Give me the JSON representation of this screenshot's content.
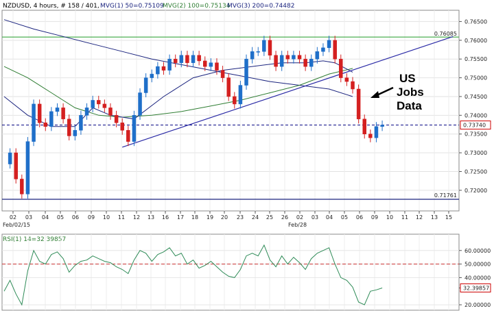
{
  "header": {
    "symbol": "NZDUSD",
    "timeframe": ", 4 hours, # 158 / 401, ",
    "mvg1": "MVG(1) 50=0.75109",
    "mvg2": "MVG(2) 100=0.75134",
    "mvg3": "MVG(3) 200=0.74482"
  },
  "annotation": {
    "line1": "US",
    "line2": "Jobs",
    "line3": "Data"
  },
  "colors": {
    "candle_up": "#1f6fc9",
    "candle_down": "#d42020",
    "mvg1": "#1a237e",
    "mvg2": "#2e7d32",
    "mvg3": "#1a237e",
    "trendline": "#2a2aa6",
    "resistance": "#4caf50",
    "support": "#1a237e",
    "current_price": "#000080",
    "rsi_line": "#2e8b57",
    "rsi_level": "#cc3333"
  },
  "chart_data": [
    {
      "type": "candlestick",
      "title": "NZDUSD, 4 hours",
      "ylim": [
        0.7145,
        0.768
      ],
      "y_ticks": [
        "0.76500",
        "0.76000",
        "0.75500",
        "0.75000",
        "0.74500",
        "0.74000",
        "0.73500",
        "0.73000",
        "0.72500",
        "0.72000"
      ],
      "x_tick_labels": [
        "02",
        "03",
        "04",
        "05",
        "06",
        "09",
        "10",
        "11",
        "12",
        "13",
        "16",
        "17",
        "18",
        "19",
        "20",
        "23",
        "24",
        "25",
        "26",
        "02",
        "03",
        "04",
        "05",
        "06",
        "09",
        "10",
        "11",
        "12",
        "13",
        "15"
      ],
      "date_labels": [
        "Feb/02/15",
        "Feb/28"
      ],
      "price_labels": {
        "resistance": "0.76085",
        "current": "0.73740",
        "support": "0.71761"
      },
      "levels": {
        "resistance": 0.76085,
        "current": 0.7374,
        "support": 0.71761
      },
      "close_path": [
        [
          0,
          0.727
        ],
        [
          1,
          0.73
        ],
        [
          2,
          0.723
        ],
        [
          3,
          0.719
        ],
        [
          4,
          0.733
        ],
        [
          5,
          0.743
        ],
        [
          6,
          0.738
        ],
        [
          7,
          0.737
        ],
        [
          8,
          0.741
        ],
        [
          9,
          0.742
        ],
        [
          10,
          0.739
        ],
        [
          11,
          0.7345
        ],
        [
          12,
          0.736
        ],
        [
          13,
          0.74
        ],
        [
          14,
          0.742
        ],
        [
          15,
          0.744
        ],
        [
          16,
          0.743
        ],
        [
          17,
          0.742
        ],
        [
          18,
          0.74
        ],
        [
          19,
          0.738
        ],
        [
          20,
          0.736
        ],
        [
          21,
          0.733
        ],
        [
          22,
          0.74
        ],
        [
          23,
          0.746
        ],
        [
          24,
          0.75
        ],
        [
          25,
          0.751
        ],
        [
          26,
          0.753
        ],
        [
          27,
          0.752
        ],
        [
          28,
          0.755
        ],
        [
          29,
          0.754
        ],
        [
          30,
          0.756
        ],
        [
          31,
          0.754
        ],
        [
          32,
          0.756
        ],
        [
          33,
          0.7545
        ],
        [
          34,
          0.753
        ],
        [
          35,
          0.754
        ],
        [
          36,
          0.752
        ],
        [
          37,
          0.75
        ],
        [
          38,
          0.745
        ],
        [
          39,
          0.743
        ],
        [
          40,
          0.748
        ],
        [
          41,
          0.755
        ],
        [
          42,
          0.757
        ],
        [
          43,
          0.757
        ],
        [
          44,
          0.76
        ],
        [
          45,
          0.756
        ],
        [
          46,
          0.753
        ],
        [
          47,
          0.756
        ],
        [
          48,
          0.755
        ],
        [
          49,
          0.756
        ],
        [
          50,
          0.755
        ],
        [
          51,
          0.753
        ],
        [
          52,
          0.755
        ],
        [
          53,
          0.757
        ],
        [
          54,
          0.758
        ],
        [
          55,
          0.76
        ],
        [
          56,
          0.755
        ],
        [
          57,
          0.75
        ],
        [
          58,
          0.749
        ],
        [
          59,
          0.747
        ],
        [
          60,
          0.739
        ],
        [
          61,
          0.735
        ],
        [
          62,
          0.734
        ],
        [
          63,
          0.737
        ],
        [
          64,
          0.7374
        ]
      ],
      "ma_50": [
        [
          0,
          0.745
        ],
        [
          4,
          0.74
        ],
        [
          8,
          0.737
        ],
        [
          12,
          0.737
        ],
        [
          15,
          0.742
        ],
        [
          18,
          0.74
        ],
        [
          22,
          0.739
        ],
        [
          27,
          0.745
        ],
        [
          32,
          0.75
        ],
        [
          37,
          0.752
        ],
        [
          42,
          0.753
        ],
        [
          47,
          0.754
        ],
        [
          51,
          0.754
        ],
        [
          54,
          0.7545
        ],
        [
          56,
          0.754
        ],
        [
          59,
          0.7515
        ]
      ],
      "ma_100": [
        [
          0,
          0.753
        ],
        [
          4,
          0.75
        ],
        [
          8,
          0.746
        ],
        [
          12,
          0.742
        ],
        [
          16,
          0.74
        ],
        [
          20,
          0.7395
        ],
        [
          25,
          0.74
        ],
        [
          30,
          0.741
        ],
        [
          35,
          0.7425
        ],
        [
          40,
          0.744
        ],
        [
          45,
          0.746
        ],
        [
          50,
          0.748
        ],
        [
          55,
          0.751
        ],
        [
          59,
          0.7525
        ]
      ],
      "ma_200": [
        [
          0,
          0.7655
        ],
        [
          5,
          0.763
        ],
        [
          10,
          0.761
        ],
        [
          15,
          0.759
        ],
        [
          20,
          0.757
        ],
        [
          25,
          0.755
        ],
        [
          30,
          0.7535
        ],
        [
          35,
          0.752
        ],
        [
          40,
          0.7505
        ],
        [
          45,
          0.749
        ],
        [
          50,
          0.748
        ],
        [
          55,
          0.747
        ],
        [
          59,
          0.745
        ]
      ],
      "trendline": [
        [
          20,
          0.7315
        ],
        [
          76,
          0.761
        ]
      ]
    },
    {
      "type": "line",
      "title": "RSI(1) 14=32.39857",
      "ylim": [
        16,
        72
      ],
      "y_ticks": [
        "60.00000",
        "50.00000",
        "40.00000",
        "32.39857",
        "20.00000"
      ],
      "level": 50,
      "current_label": "32.39857",
      "values": [
        [
          0,
          30
        ],
        [
          1,
          38
        ],
        [
          2,
          28
        ],
        [
          3,
          20
        ],
        [
          4,
          45
        ],
        [
          5,
          60
        ],
        [
          6,
          52
        ],
        [
          7,
          50
        ],
        [
          8,
          57
        ],
        [
          9,
          59
        ],
        [
          10,
          54
        ],
        [
          11,
          44
        ],
        [
          12,
          49
        ],
        [
          13,
          52
        ],
        [
          14,
          53
        ],
        [
          15,
          56
        ],
        [
          16,
          54
        ],
        [
          17,
          52
        ],
        [
          18,
          51
        ],
        [
          19,
          48
        ],
        [
          20,
          46
        ],
        [
          21,
          43
        ],
        [
          22,
          53
        ],
        [
          23,
          60
        ],
        [
          24,
          58
        ],
        [
          25,
          52
        ],
        [
          26,
          57
        ],
        [
          27,
          59
        ],
        [
          28,
          62
        ],
        [
          29,
          56
        ],
        [
          30,
          58
        ],
        [
          31,
          50
        ],
        [
          32,
          53
        ],
        [
          33,
          47
        ],
        [
          34,
          49
        ],
        [
          35,
          52
        ],
        [
          36,
          48
        ],
        [
          37,
          44
        ],
        [
          38,
          41
        ],
        [
          39,
          40
        ],
        [
          40,
          46
        ],
        [
          41,
          56
        ],
        [
          42,
          58
        ],
        [
          43,
          56
        ],
        [
          44,
          64
        ],
        [
          45,
          53
        ],
        [
          46,
          48
        ],
        [
          47,
          56
        ],
        [
          48,
          50
        ],
        [
          49,
          55
        ],
        [
          50,
          51
        ],
        [
          51,
          46
        ],
        [
          52,
          54
        ],
        [
          53,
          58
        ],
        [
          54,
          60
        ],
        [
          55,
          62
        ],
        [
          56,
          50
        ],
        [
          57,
          40
        ],
        [
          58,
          38
        ],
        [
          59,
          33
        ],
        [
          60,
          22
        ],
        [
          61,
          20
        ],
        [
          62,
          30
        ],
        [
          63,
          31
        ],
        [
          64,
          32.4
        ]
      ]
    }
  ]
}
